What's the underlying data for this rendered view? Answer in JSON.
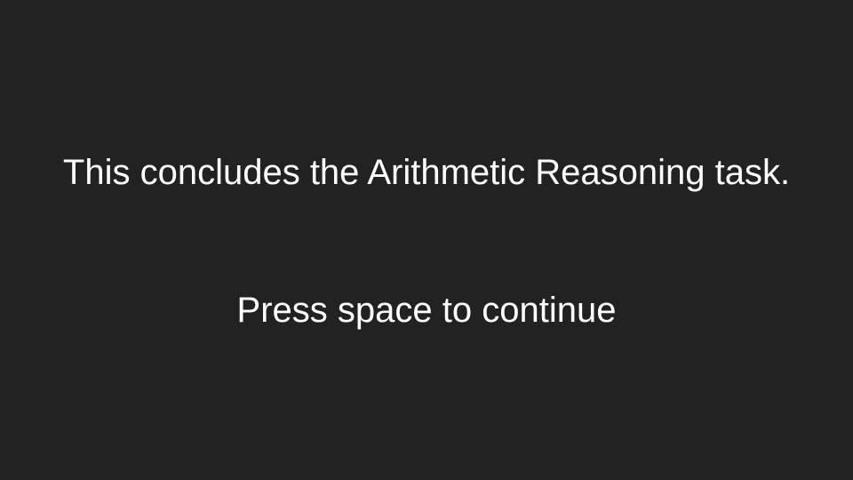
{
  "screen": {
    "message": "This concludes the Arithmetic Reasoning task.",
    "prompt": "Press space to continue"
  },
  "colors": {
    "background": "#222222",
    "text": "#ffffff"
  }
}
